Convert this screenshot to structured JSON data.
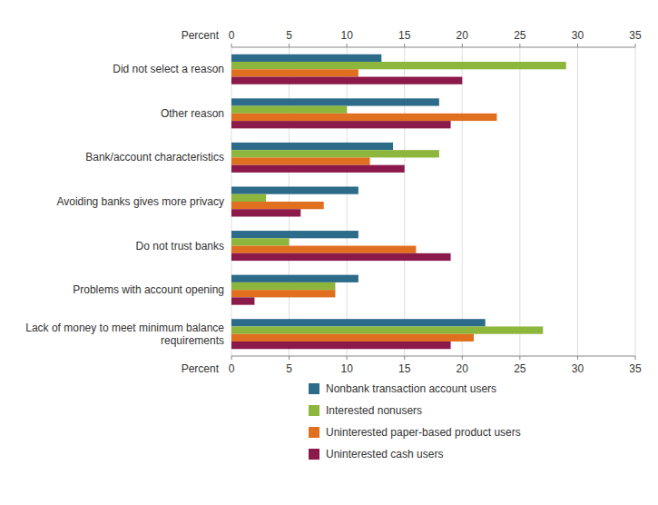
{
  "chart_data": {
    "type": "bar",
    "orientation": "horizontal",
    "categories": [
      "Lack of money to meet minimum balance\nrequirements",
      "Problems with account opening",
      "Do not trust banks",
      "Avoiding banks gives more privacy",
      "Bank/account characteristics",
      "Other reason",
      "Did not select a reason"
    ],
    "series": [
      {
        "name": "Nonbank transaction account users",
        "color": "#2d6b8a",
        "values": [
          22,
          11,
          11,
          11,
          14,
          18,
          13
        ]
      },
      {
        "name": "Interested nonusers",
        "color": "#8db63c",
        "values": [
          27,
          9,
          5,
          3,
          18,
          10,
          29
        ]
      },
      {
        "name": "Uninterested paper-based product users",
        "color": "#e07020",
        "values": [
          21,
          9,
          16,
          8,
          12,
          23,
          11
        ]
      },
      {
        "name": "Uninterested cash users",
        "color": "#8b1a4a",
        "values": [
          19,
          2,
          19,
          6,
          15,
          19,
          20
        ]
      }
    ],
    "xlabel": "Percent",
    "xlim": [
      0,
      35
    ],
    "xticks": [
      0,
      5,
      10,
      15,
      20,
      25,
      30,
      35
    ],
    "grid": true,
    "legend": "bottom"
  }
}
